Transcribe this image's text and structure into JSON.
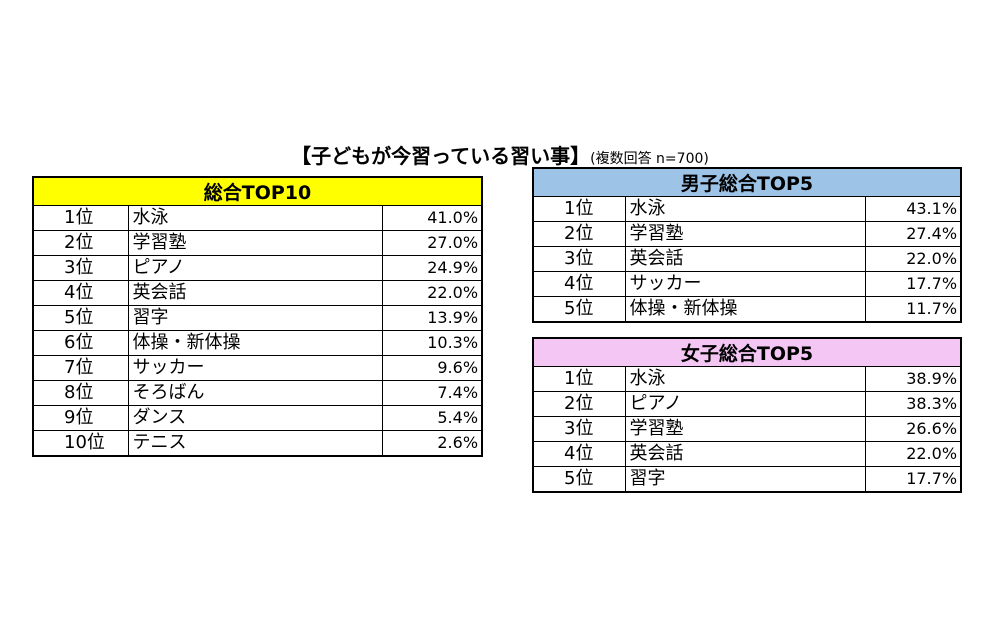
{
  "title": {
    "main": "【子どもが今習っている習い事】",
    "note": "(複数回答  n=700)"
  },
  "chart_data": [
    {
      "type": "table",
      "title": "総合TOP10",
      "header_color": "#ffff00",
      "rows": [
        {
          "rank": "1位",
          "item": "水泳",
          "value": 41.0,
          "label": "41.0%"
        },
        {
          "rank": "2位",
          "item": "学習塾",
          "value": 27.0,
          "label": "27.0%"
        },
        {
          "rank": "3位",
          "item": "ピアノ",
          "value": 24.9,
          "label": "24.9%"
        },
        {
          "rank": "4位",
          "item": "英会話",
          "value": 22.0,
          "label": "22.0%"
        },
        {
          "rank": "5位",
          "item": "習字",
          "value": 13.9,
          "label": "13.9%"
        },
        {
          "rank": "6位",
          "item": "体操・新体操",
          "value": 10.3,
          "label": "10.3%"
        },
        {
          "rank": "7位",
          "item": "サッカー",
          "value": 9.6,
          "label": "9.6%"
        },
        {
          "rank": "8位",
          "item": "そろばん",
          "value": 7.4,
          "label": "7.4%"
        },
        {
          "rank": "9位",
          "item": "ダンス",
          "value": 5.4,
          "label": "5.4%"
        },
        {
          "rank": "10位",
          "item": "テニス",
          "value": 2.6,
          "label": "2.6%"
        }
      ]
    },
    {
      "type": "table",
      "title": "男子総合TOP5",
      "header_color": "#9dc3e6",
      "rows": [
        {
          "rank": "1位",
          "item": "水泳",
          "value": 43.1,
          "label": "43.1%"
        },
        {
          "rank": "2位",
          "item": "学習塾",
          "value": 27.4,
          "label": "27.4%"
        },
        {
          "rank": "3位",
          "item": "英会話",
          "value": 22.0,
          "label": "22.0%"
        },
        {
          "rank": "4位",
          "item": "サッカー",
          "value": 17.7,
          "label": "17.7%"
        },
        {
          "rank": "5位",
          "item": "体操・新体操",
          "value": 11.7,
          "label": "11.7%"
        }
      ]
    },
    {
      "type": "table",
      "title": "女子総合TOP5",
      "header_color": "#f4c6f4",
      "rows": [
        {
          "rank": "1位",
          "item": "水泳",
          "value": 38.9,
          "label": "38.9%"
        },
        {
          "rank": "2位",
          "item": "ピアノ",
          "value": 38.3,
          "label": "38.3%"
        },
        {
          "rank": "3位",
          "item": "学習塾",
          "value": 26.6,
          "label": "26.6%"
        },
        {
          "rank": "4位",
          "item": "英会話",
          "value": 22.0,
          "label": "22.0%"
        },
        {
          "rank": "5位",
          "item": "習字",
          "value": 17.7,
          "label": "17.7%"
        }
      ]
    }
  ]
}
